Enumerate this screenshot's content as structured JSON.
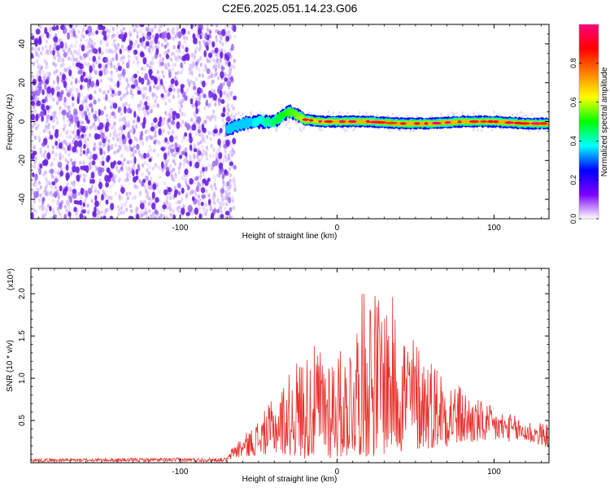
{
  "title": "C2E6.2025.051.14.23.G06",
  "colors": {
    "signal": "#e8302c",
    "scatter": "#6a1fe0",
    "axis": "#000000"
  },
  "chart_data": [
    {
      "type": "heatmap",
      "xlabel": "Height of straight line (km)",
      "ylabel": "Frequency (Hz)",
      "xlim": [
        -195,
        135
      ],
      "ylim": [
        -50,
        50
      ],
      "x_ticks": [
        -100,
        0,
        100
      ],
      "y_ticks": [
        -40,
        -20,
        0,
        20,
        40
      ],
      "colorbar": {
        "label": "Normalized spectral amplitude",
        "range": [
          0,
          1
        ],
        "ticks": [
          "0.0",
          "0.2",
          "0.4",
          "0.6",
          "0.8"
        ],
        "tick_values": [
          0.0,
          0.2,
          0.4,
          0.6,
          0.8
        ],
        "colormap": [
          "#ffffff",
          "#7b00ff",
          "#0000ff",
          "#00ffff",
          "#00ff00",
          "#ffff00",
          "#ff8000",
          "#ff0000",
          "#ff0080"
        ]
      },
      "regions": [
        {
          "x_range": [
            -195,
            -65
          ],
          "freq_range": [
            -50,
            50
          ],
          "amplitude": 0.05
        },
        {
          "x_range": [
            -65,
            135
          ],
          "freq_center": 0,
          "freq_halfwidth": 3,
          "amplitude_peak": 0.95
        }
      ],
      "signal_track": {
        "x": [
          -70,
          -60,
          -50,
          -40,
          -35,
          -30,
          -25,
          -20,
          -10,
          0,
          20,
          40,
          60,
          80,
          100,
          120,
          135
        ],
        "freq": [
          -4,
          -1,
          0,
          0,
          3,
          5,
          3,
          1,
          0,
          0,
          0,
          -1,
          -1,
          0,
          0,
          -1,
          -1
        ]
      }
    },
    {
      "type": "line",
      "xlabel": "Height of straight line (km)",
      "ylabel": "SNR (10 * v/v)",
      "y_multiplier": "(x10⁴)",
      "xlim": [
        -195,
        135
      ],
      "ylim": [
        0,
        2.3
      ],
      "x_ticks": [
        -100,
        0,
        100
      ],
      "y_ticks": [
        "0.5",
        "1.0",
        "1.5",
        "2.0"
      ],
      "y_tick_values": [
        0.5,
        1.0,
        1.5,
        2.0
      ],
      "envelope": {
        "x": [
          -195,
          -70,
          -65,
          -55,
          -45,
          -35,
          -25,
          -15,
          -5,
          5,
          15,
          20,
          25,
          35,
          45,
          55,
          65,
          75,
          85,
          95,
          105,
          115,
          125,
          135
        ],
        "max": [
          0.05,
          0.06,
          0.25,
          0.4,
          0.65,
          0.92,
          1.25,
          1.38,
          1.42,
          1.32,
          1.95,
          2.28,
          2.05,
          1.98,
          1.62,
          1.38,
          1.18,
          0.98,
          0.82,
          0.7,
          0.62,
          0.55,
          0.5,
          0.45
        ],
        "min": [
          0.01,
          0.01,
          0.05,
          0.08,
          0.1,
          0.1,
          0.06,
          0.04,
          0.04,
          0.06,
          0.08,
          0.05,
          0.08,
          0.1,
          0.12,
          0.15,
          0.18,
          0.2,
          0.22,
          0.24,
          0.25,
          0.25,
          0.22,
          0.18
        ]
      }
    }
  ]
}
